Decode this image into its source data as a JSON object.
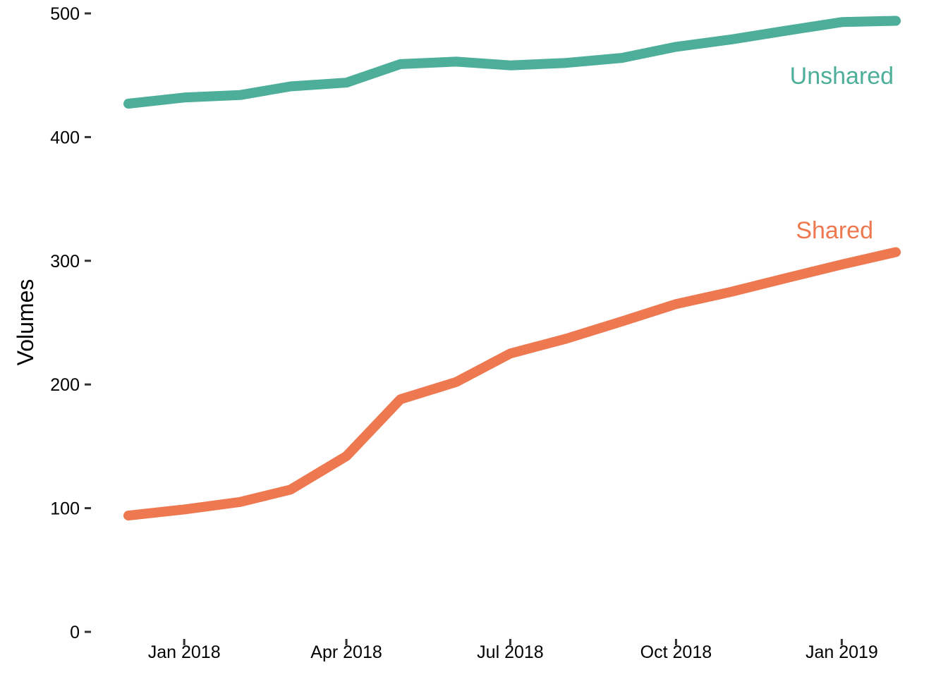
{
  "chart_data": {
    "type": "line",
    "title": "",
    "xlabel": "",
    "ylabel": "Volumes",
    "ylim": [
      0,
      500
    ],
    "xlim": [
      "2017-12-01",
      "2019-01-31"
    ],
    "grid": false,
    "legend": "none (direct labels)",
    "y_ticks": [
      {
        "value": 0,
        "label": "0"
      },
      {
        "value": 100,
        "label": "100"
      },
      {
        "value": 200,
        "label": "200"
      },
      {
        "value": 300,
        "label": "300"
      },
      {
        "value": 400,
        "label": "400"
      },
      {
        "value": 500,
        "label": "500"
      }
    ],
    "x_ticks": [
      {
        "value": "2018-01-01",
        "label": "Jan 2018"
      },
      {
        "value": "2018-04-01",
        "label": "Apr 2018"
      },
      {
        "value": "2018-07-01",
        "label": "Jul 2018"
      },
      {
        "value": "2018-10-01",
        "label": "Oct 2018"
      },
      {
        "value": "2019-01-01",
        "label": "Jan 2019"
      }
    ],
    "x": [
      "2017-12-01",
      "2018-01-01",
      "2018-02-01",
      "2018-03-01",
      "2018-04-01",
      "2018-05-01",
      "2018-06-01",
      "2018-07-01",
      "2018-08-01",
      "2018-09-01",
      "2018-10-01",
      "2018-11-01",
      "2018-12-01",
      "2019-01-01",
      "2019-01-31"
    ],
    "series": [
      {
        "name": "Unshared",
        "color": "#4dae99",
        "label_x": "2019-01-01",
        "label_y": 443,
        "values": [
          427,
          432,
          434,
          441,
          444,
          459,
          461,
          458,
          460,
          464,
          473,
          479,
          486,
          493,
          494
        ]
      },
      {
        "name": "Shared",
        "color": "#ee7850",
        "label_x": "2018-12-28",
        "label_y": 318,
        "values": [
          94,
          99,
          105,
          115,
          142,
          188,
          202,
          225,
          237,
          251,
          265,
          275,
          286,
          297,
          307
        ]
      }
    ]
  }
}
